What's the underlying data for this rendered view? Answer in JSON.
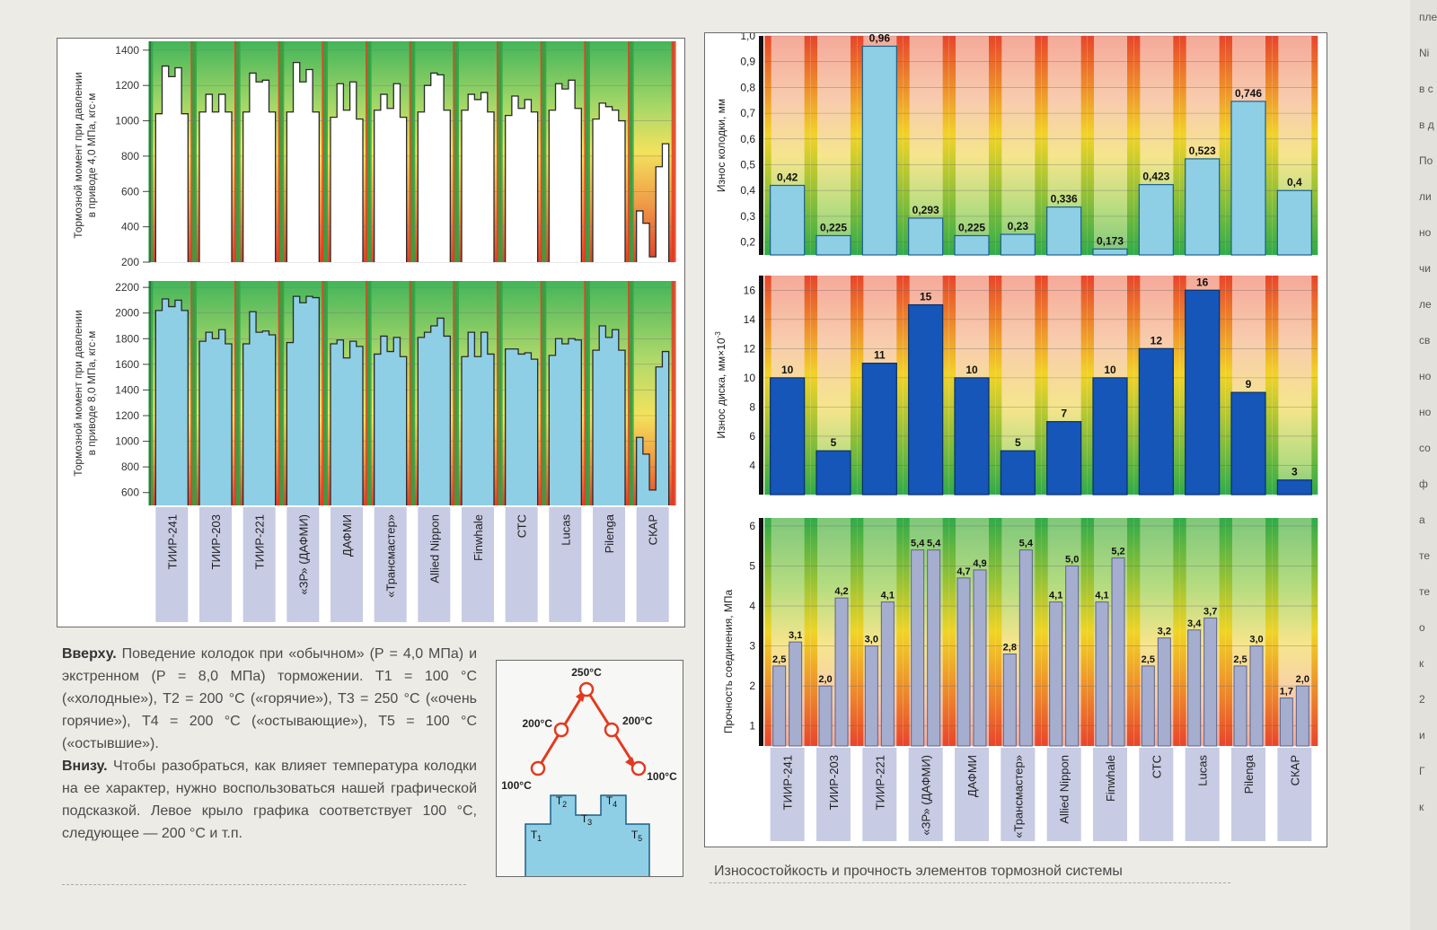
{
  "brands": [
    "ТИИР-241",
    "ТИИР-203",
    "ТИИР-221",
    "«ЗР» (ДАФМИ)",
    "ДАФМИ",
    "«Трансмастер»",
    "Allied Nippon",
    "Finwhale",
    "СТС",
    "Lucas",
    "Pilenga",
    "СКАР"
  ],
  "colors": {
    "light_bar": "#8ecfe6",
    "light_bar_stroke": "#1b5f8a",
    "dark_bar": "#1556b8",
    "purple_bar": "#a6aed0",
    "stripe_green": "#27a844",
    "stripe_red": "#e63a1f",
    "stripe_yellow": "#f1d21c"
  },
  "left_chart": {
    "top": {
      "ylabel_line1": "Тормозной момент при давлении",
      "ylabel_line2": "в приводе 4,0 МПа, кгс·м",
      "ticks": [
        "1400",
        "1200",
        "1000",
        "800",
        "600",
        "400",
        "200"
      ],
      "ylim": [
        200,
        1450
      ]
    },
    "bottom": {
      "ylabel_line1": "Тормозной момент при давлении",
      "ylabel_line2": "в приводе 8,0 МПа, кгс·м",
      "ticks": [
        "2200",
        "2000",
        "1800",
        "1600",
        "1400",
        "1200",
        "1000",
        "800",
        "600"
      ],
      "ylim": [
        500,
        2250
      ]
    }
  },
  "chart_data": [
    {
      "type": "bar",
      "title": "",
      "ylabel": "Тормозной момент при давлении в приводе 4,0 МПа, кгс·м",
      "ylim": [
        200,
        1450
      ],
      "x": [
        "T1",
        "T2",
        "T3",
        "T4",
        "T5"
      ],
      "categories": [
        "ТИИР-241",
        "ТИИР-203",
        "ТИИР-221",
        "«ЗР» (ДАФМИ)",
        "ДАФМИ",
        "«Трансмастер»",
        "Allied Nippon",
        "Finwhale",
        "СТС",
        "Lucas",
        "Pilenga",
        "СКАР"
      ],
      "series_values": [
        [
          1040,
          1310,
          1250,
          1300,
          1040
        ],
        [
          1050,
          1150,
          1050,
          1150,
          1050
        ],
        [
          1050,
          1270,
          1220,
          1230,
          1050
        ],
        [
          1050,
          1330,
          1220,
          1290,
          1050
        ],
        [
          1020,
          1210,
          1060,
          1220,
          1010
        ],
        [
          1060,
          1150,
          1070,
          1210,
          1020
        ],
        [
          1050,
          1200,
          1270,
          1260,
          1060
        ],
        [
          1060,
          1150,
          1120,
          1160,
          1050
        ],
        [
          1030,
          1140,
          1070,
          1120,
          1050
        ],
        [
          1060,
          1210,
          1180,
          1230,
          1070
        ],
        [
          1010,
          1100,
          1080,
          1060,
          1000
        ],
        [
          490,
          420,
          230,
          740,
          870
        ]
      ]
    },
    {
      "type": "bar",
      "title": "",
      "ylabel": "Тормозной момент при давлении в приводе 8,0 МПа, кгс·м",
      "ylim": [
        500,
        2250
      ],
      "x": [
        "T1",
        "T2",
        "T3",
        "T4",
        "T5"
      ],
      "categories": [
        "ТИИР-241",
        "ТИИР-203",
        "ТИИР-221",
        "«ЗР» (ДАФМИ)",
        "ДАФМИ",
        "«Трансмастер»",
        "Allied Nippon",
        "Finwhale",
        "СТС",
        "Lucas",
        "Pilenga",
        "СКАР"
      ],
      "series_values": [
        [
          2020,
          2110,
          2050,
          2100,
          2020
        ],
        [
          1780,
          1850,
          1800,
          1870,
          1760
        ],
        [
          1760,
          2010,
          1850,
          1860,
          1830
        ],
        [
          1770,
          2130,
          2080,
          2130,
          2120
        ],
        [
          1760,
          1790,
          1650,
          1780,
          1740
        ],
        [
          1680,
          1820,
          1700,
          1810,
          1660
        ],
        [
          1810,
          1850,
          1900,
          1960,
          1820
        ],
        [
          1660,
          1850,
          1660,
          1850,
          1680
        ],
        [
          1720,
          1720,
          1680,
          1690,
          1640
        ],
        [
          1670,
          1800,
          1760,
          1800,
          1790
        ],
        [
          1710,
          1900,
          1810,
          1870,
          1710
        ],
        [
          1030,
          900,
          620,
          1580,
          1700
        ]
      ]
    },
    {
      "type": "bar",
      "title": "",
      "ylabel": "Износ колодки, мм",
      "ylim": [
        0.15,
        1.0
      ],
      "ticks": [
        "1,0",
        "0,9",
        "0,8",
        "0,7",
        "0,6",
        "0,5",
        "0,4",
        "0,3",
        "0,2"
      ],
      "categories": [
        "ТИИР-241",
        "ТИИР-203",
        "ТИИР-221",
        "«ЗР» (ДАФМИ)",
        "ДАФМИ",
        "«Трансмастер»",
        "Allied Nippon",
        "Finwhale",
        "СТС",
        "Lucas",
        "Pilenga",
        "СКАР"
      ],
      "values": [
        0.42,
        0.225,
        0.96,
        0.293,
        0.225,
        0.23,
        0.336,
        0.173,
        0.423,
        0.523,
        0.746,
        0.4
      ],
      "labels": [
        "0,42",
        "0,225",
        "0,96",
        "0,293",
        "0,225",
        "0,23",
        "0,336",
        "0,173",
        "0,423",
        "0,523",
        "0,746",
        "0,4"
      ]
    },
    {
      "type": "bar",
      "title": "",
      "ylabel": "Износ диска, мм×10⁻³",
      "ylim": [
        2,
        17
      ],
      "ticks": [
        "16",
        "14",
        "12",
        "10",
        "8",
        "6",
        "4"
      ],
      "categories": [
        "ТИИР-241",
        "ТИИР-203",
        "ТИИР-221",
        "«ЗР» (ДАФМИ)",
        "ДАФМИ",
        "«Трансмастер»",
        "Allied Nippon",
        "Finwhale",
        "СТС",
        "Lucas",
        "Pilenga",
        "СКАР"
      ],
      "values": [
        10,
        5,
        11,
        15,
        10,
        5,
        7,
        10,
        12,
        16,
        9,
        3
      ],
      "labels": [
        "10",
        "5",
        "11",
        "15",
        "10",
        "5",
        "7",
        "10",
        "12",
        "16",
        "9",
        "3"
      ]
    },
    {
      "type": "bar",
      "title": "",
      "ylabel": "Прочность соединения, МПа",
      "ylim": [
        0.5,
        6.2
      ],
      "ticks": [
        "6",
        "5",
        "4",
        "3",
        "2",
        "1"
      ],
      "categories": [
        "ТИИР-241",
        "ТИИР-203",
        "ТИИР-221",
        "«ЗР» (ДАФМИ)",
        "ДАФМИ",
        "«Трансмастер»",
        "Allied Nippon",
        "Finwhale",
        "СТС",
        "Lucas",
        "Pilenga",
        "СКАР"
      ],
      "series": [
        {
          "values": [
            2.5,
            2.0,
            3.0,
            5.4,
            4.7,
            2.8,
            4.1,
            4.1,
            2.5,
            3.4,
            2.5,
            1.7
          ],
          "labels": [
            "2,5",
            "2,0",
            "3,0",
            "5,4",
            "4,7",
            "2,8",
            "4,1",
            "4,1",
            "2,5",
            "3,4",
            "2,5",
            "1,7"
          ]
        },
        {
          "values": [
            3.1,
            4.2,
            4.1,
            5.4,
            4.9,
            5.4,
            5.0,
            5.2,
            3.2,
            3.7,
            3.0,
            2.0
          ],
          "labels": [
            "3,1",
            "4,2",
            "4,1",
            "5,4",
            "4,9",
            "5,4",
            "5,0",
            "5,2",
            "3,2",
            "3,7",
            "3,0",
            "2,0"
          ]
        }
      ]
    }
  ],
  "right_chart": {
    "pad_ylabel": "Износ колодки, мм",
    "disk_ylabel_main": "Износ диска, мм×10",
    "disk_ylabel_sup": "-3",
    "strength_ylabel": "Прочность соединения, МПа"
  },
  "inset": {
    "temps": [
      "250°C",
      "200°C",
      "200°C",
      "100°C",
      "100°C"
    ],
    "t_labels": [
      "T",
      "T",
      "T",
      "T",
      "T"
    ],
    "t_subs": [
      "1",
      "2",
      "3",
      "4",
      "5"
    ]
  },
  "captions": {
    "top_bold": "Вверху.",
    "top_text": "Поведение колодок при «обычном» (Р = 4,0 МПа) и экстренном (Р = 8,0 МПа) торможении. Т1 = 100 °С («холодные»), Т2 = 200 °С («горячие»), Т3 = 250 °С («очень горячие»), Т4 = 200 °С («остывающие»), Т5 = 100 °С («остывшие»).",
    "bottom_bold": "Внизу.",
    "bottom_text": "Чтобы разобраться, как влияет температура колодки на ее характер, нужно воспользоваться нашей графической подсказкой. Левое крыло графика соответствует 100 °С, следующее — 200 °С и т.п.",
    "right": "Износостойкость и прочность элементов тормозной системы"
  },
  "edge_fragments": [
    "пле",
    "Ni",
    "в с",
    "в д",
    "По",
    "ли",
    "но",
    "чи",
    "ле",
    "св",
    "но",
    "но",
    "со",
    "ф",
    "а",
    "те",
    "те",
    "о",
    "к",
    "2",
    "и",
    "Г",
    "к"
  ]
}
